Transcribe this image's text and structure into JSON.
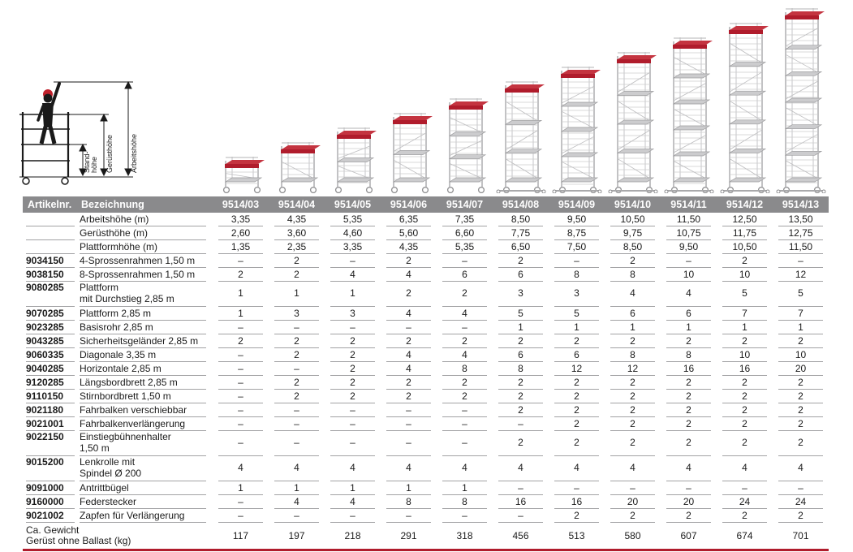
{
  "colors": {
    "accent_red": "#b01c2c",
    "header_gray": "#8a8a8c",
    "frame_gray": "#b3b3b5",
    "deck_gray": "#ccccce"
  },
  "pictogram": {
    "stand_line1": "Stand-",
    "stand_line2": "höhe",
    "geruest": "Gerüsthöhe",
    "arbeit": "Arbeitshöhe"
  },
  "table": {
    "header": {
      "artikelnr": "Artikelnr.",
      "bezeichnung": "Bezeichnung",
      "models": [
        "9514/03",
        "9514/04",
        "9514/05",
        "9514/06",
        "9514/07",
        "9514/08",
        "9514/09",
        "9514/10",
        "9514/11",
        "9514/12",
        "9514/13"
      ]
    },
    "rows": [
      {
        "art": "",
        "label": "Arbeitshöhe (m)",
        "values": [
          "3,35",
          "4,35",
          "5,35",
          "6,35",
          "7,35",
          "8,50",
          "9,50",
          "10,50",
          "11,50",
          "12,50",
          "13,50"
        ]
      },
      {
        "art": "",
        "label": "Gerüsthöhe (m)",
        "values": [
          "2,60",
          "3,60",
          "4,60",
          "5,60",
          "6,60",
          "7,75",
          "8,75",
          "9,75",
          "10,75",
          "11,75",
          "12,75"
        ]
      },
      {
        "art": "",
        "label": "Plattformhöhe (m)",
        "values": [
          "1,35",
          "2,35",
          "3,35",
          "4,35",
          "5,35",
          "6,50",
          "7,50",
          "8,50",
          "9,50",
          "10,50",
          "11,50"
        ]
      },
      {
        "art": "9034150",
        "label": "4-Sprossenrahmen 1,50 m",
        "values": [
          "–",
          "2",
          "–",
          "2",
          "–",
          "2",
          "–",
          "2",
          "–",
          "2",
          "–"
        ]
      },
      {
        "art": "9038150",
        "label": "8-Sprossenrahmen 1,50 m",
        "values": [
          "2",
          "2",
          "4",
          "4",
          "6",
          "6",
          "8",
          "8",
          "10",
          "10",
          "12"
        ]
      },
      {
        "art": "9080285",
        "label": "Plattform",
        "label2": "mit Durchstieg 2,85 m",
        "values": [
          "1",
          "1",
          "1",
          "2",
          "2",
          "3",
          "3",
          "4",
          "4",
          "5",
          "5"
        ]
      },
      {
        "art": "9070285",
        "label": "Plattform 2,85 m",
        "values": [
          "1",
          "3",
          "3",
          "4",
          "4",
          "5",
          "5",
          "6",
          "6",
          "7",
          "7"
        ]
      },
      {
        "art": "9023285",
        "label": "Basisrohr 2,85 m",
        "values": [
          "–",
          "–",
          "–",
          "–",
          "–",
          "1",
          "1",
          "1",
          "1",
          "1",
          "1"
        ]
      },
      {
        "art": "9043285",
        "label": "Sicherheitsgeländer 2,85 m",
        "values": [
          "2",
          "2",
          "2",
          "2",
          "2",
          "2",
          "2",
          "2",
          "2",
          "2",
          "2"
        ]
      },
      {
        "art": "9060335",
        "label": "Diagonale 3,35 m",
        "values": [
          "–",
          "2",
          "2",
          "4",
          "4",
          "6",
          "6",
          "8",
          "8",
          "10",
          "10"
        ]
      },
      {
        "art": "9040285",
        "label": "Horizontale 2,85 m",
        "values": [
          "–",
          "–",
          "2",
          "4",
          "8",
          "8",
          "12",
          "12",
          "16",
          "16",
          "20"
        ]
      },
      {
        "art": "9120285",
        "label": "Längsbordbrett 2,85 m",
        "values": [
          "–",
          "2",
          "2",
          "2",
          "2",
          "2",
          "2",
          "2",
          "2",
          "2",
          "2"
        ]
      },
      {
        "art": "9110150",
        "label": "Stirnbordbrett 1,50 m",
        "values": [
          "–",
          "2",
          "2",
          "2",
          "2",
          "2",
          "2",
          "2",
          "2",
          "2",
          "2"
        ]
      },
      {
        "art": "9021180",
        "label": "Fahrbalken verschiebbar",
        "values": [
          "–",
          "–",
          "–",
          "–",
          "–",
          "2",
          "2",
          "2",
          "2",
          "2",
          "2"
        ]
      },
      {
        "art": "9021001",
        "label": "Fahrbalkenverlängerung",
        "values": [
          "–",
          "–",
          "–",
          "–",
          "–",
          "–",
          "2",
          "2",
          "2",
          "2",
          "2"
        ]
      },
      {
        "art": "9022150",
        "label": "Einstiegbühnenhalter",
        "label2": "1,50 m",
        "values": [
          "–",
          "–",
          "–",
          "–",
          "–",
          "2",
          "2",
          "2",
          "2",
          "2",
          "2"
        ]
      },
      {
        "art": "9015200",
        "label": "Lenkrolle mit",
        "label2": "Spindel Ø 200",
        "values": [
          "4",
          "4",
          "4",
          "4",
          "4",
          "4",
          "4",
          "4",
          "4",
          "4",
          "4"
        ]
      },
      {
        "art": "9091000",
        "label": "Antrittbügel",
        "values": [
          "1",
          "1",
          "1",
          "1",
          "1",
          "–",
          "–",
          "–",
          "–",
          "–",
          "–"
        ]
      },
      {
        "art": "9160000",
        "label": "Federstecker",
        "values": [
          "–",
          "4",
          "4",
          "8",
          "8",
          "16",
          "16",
          "20",
          "20",
          "24",
          "24"
        ]
      },
      {
        "art": "9021002",
        "label": "Zapfen für Verlängerung",
        "values": [
          "–",
          "–",
          "–",
          "–",
          "–",
          "–",
          "2",
          "2",
          "2",
          "2",
          "2"
        ]
      }
    ],
    "footer": {
      "label_line1": "Ca. Gewicht",
      "label_line2": "Gerüst ohne Ballast (kg)",
      "values": [
        "117",
        "197",
        "218",
        "291",
        "318",
        "456",
        "513",
        "580",
        "607",
        "674",
        "701"
      ]
    }
  }
}
